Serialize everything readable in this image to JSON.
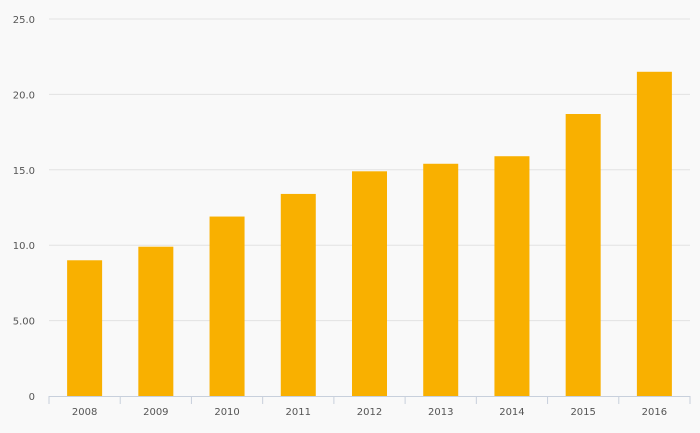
{
  "chart_data": {
    "type": "bar",
    "categories": [
      "2008",
      "2009",
      "2010",
      "2011",
      "2012",
      "2013",
      "2014",
      "2015",
      "2016"
    ],
    "values": [
      9.0,
      9.9,
      11.9,
      13.4,
      14.9,
      15.4,
      15.9,
      18.7,
      21.5
    ],
    "ylim": [
      0,
      25
    ],
    "y_ticks": [
      {
        "value": 0,
        "label": "0"
      },
      {
        "value": 5,
        "label": "5.00"
      },
      {
        "value": 10,
        "label": "10.0"
      },
      {
        "value": 15,
        "label": "15.0"
      },
      {
        "value": 20,
        "label": "20.0"
      },
      {
        "value": 25,
        "label": "25.0"
      }
    ],
    "grid": true,
    "legend": "none",
    "bar_color": "#F9B000"
  }
}
